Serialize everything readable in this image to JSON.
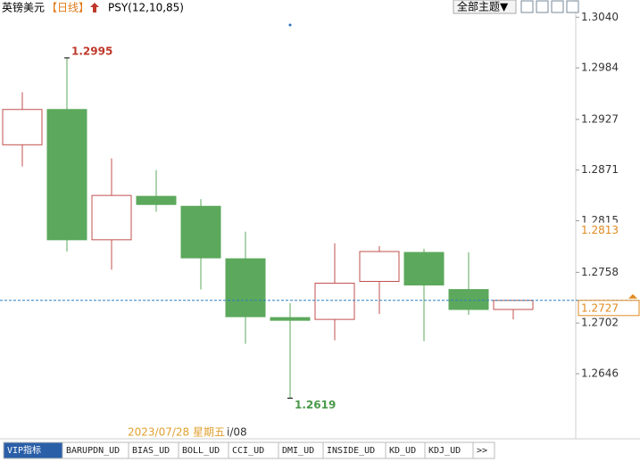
{
  "ui": {
    "symbol": "英镑美元",
    "period": "【日线】",
    "indicator": "PSY(12,10,85)",
    "theme_menu": "全部主题▼",
    "date_fragment": "i/08",
    "tabs": [
      "VIP指标",
      "BARUPDN_UD",
      "BIAS_UD",
      "BOLL_UD",
      "CCI_UD",
      "DMI_UD",
      "INSIDE_UD",
      "KD_UD",
      "KDJ_UD",
      ">>"
    ]
  },
  "chart_data": {
    "type": "candlestick",
    "open": [
      1.2899,
      1.2938,
      1.2794,
      1.2842,
      1.2831,
      1.2773,
      1.2708,
      1.2706,
      1.2748,
      1.278,
      1.2739,
      1.2717
    ],
    "high": [
      1.2957,
      1.2995,
      1.2884,
      1.2871,
      1.2839,
      1.2803,
      1.2724,
      1.279,
      1.2787,
      1.2784,
      1.278,
      1.2727
    ],
    "low": [
      1.2875,
      1.2781,
      1.2761,
      1.2825,
      1.2739,
      1.2679,
      1.2619,
      1.2683,
      1.2712,
      1.2682,
      1.2711,
      1.2706
    ],
    "close": [
      1.2938,
      1.2794,
      1.2843,
      1.2833,
      1.2774,
      1.2709,
      1.2705,
      1.2746,
      1.2781,
      1.2744,
      1.2717,
      1.2727
    ],
    "up_color": "#c0504d",
    "down_color": "#5ca85c",
    "ylim": [
      1.2576,
      1.3059
    ],
    "yticks": [
      {
        "value": 1.304,
        "label": "1.3040"
      },
      1.2984,
      1.2927,
      1.2871,
      1.2815,
      1.2758,
      1.2702,
      1.2646
    ],
    "cursor_price": 1.2813,
    "cursor_date": "2023/07/28 星期五"
  }
}
